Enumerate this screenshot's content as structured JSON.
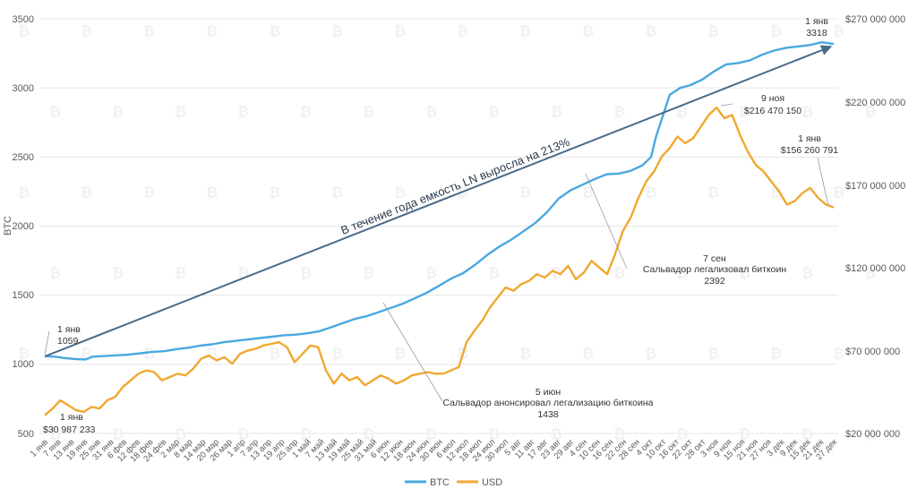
{
  "chart_data": {
    "type": "line",
    "title": "",
    "xlabel": "",
    "ylabel": "BTC",
    "y_left_ticks": [
      "500",
      "1000",
      "1500",
      "2000",
      "2500",
      "3000",
      "3500"
    ],
    "y_left_range": [
      500,
      3500
    ],
    "y_right_ticks": [
      "$20 000 000",
      "$70 000 000",
      "$120 000 000",
      "$170 000 000",
      "$220 000 000",
      "$270 000 000"
    ],
    "y_right_range": [
      20000000,
      270000000
    ],
    "x_ticks": [
      "1 янв",
      "7 янв",
      "13 янв",
      "19 янв",
      "25 янв",
      "31 янв",
      "6 фев",
      "12 фев",
      "18 фев",
      "24 фев",
      "2 мар",
      "8 мар",
      "14 мар",
      "20 мар",
      "26 мар",
      "1 апр",
      "7 апр",
      "13 апр",
      "19 апр",
      "25 апр",
      "1 май",
      "7 май",
      "13 май",
      "19 май",
      "25 май",
      "31 май",
      "6 июн",
      "12 июн",
      "18 июн",
      "24 июн",
      "30 июн",
      "6 июл",
      "12 июл",
      "18 июл",
      "24 июл",
      "30 июл",
      "5 авг",
      "11 авг",
      "17 авг",
      "23 авг",
      "29 авг",
      "4 сен",
      "10 сен",
      "16 сен",
      "22 сен",
      "28 сен",
      "4 окт",
      "10 окт",
      "16 окт",
      "22 окт",
      "28 окт",
      "3 ноя",
      "9 ноя",
      "15 ноя",
      "21 ноя",
      "27 ноя",
      "3 дек",
      "9 дек",
      "15 дек",
      "21 дек",
      "27 дек"
    ],
    "series": [
      {
        "name": "BTC",
        "axis": "left",
        "color": "#4aa8e0",
        "points": [
          [
            0,
            1059
          ],
          [
            6,
            1055
          ],
          [
            12,
            1045
          ],
          [
            18,
            1038
          ],
          [
            24,
            1035
          ],
          [
            28,
            1055
          ],
          [
            35,
            1060
          ],
          [
            42,
            1065
          ],
          [
            49,
            1070
          ],
          [
            56,
            1080
          ],
          [
            63,
            1090
          ],
          [
            70,
            1095
          ],
          [
            77,
            1110
          ],
          [
            84,
            1120
          ],
          [
            91,
            1135
          ],
          [
            98,
            1145
          ],
          [
            105,
            1160
          ],
          [
            112,
            1170
          ],
          [
            119,
            1180
          ],
          [
            126,
            1190
          ],
          [
            133,
            1200
          ],
          [
            140,
            1210
          ],
          [
            147,
            1215
          ],
          [
            154,
            1225
          ],
          [
            161,
            1240
          ],
          [
            168,
            1270
          ],
          [
            175,
            1300
          ],
          [
            182,
            1330
          ],
          [
            189,
            1350
          ],
          [
            196,
            1380
          ],
          [
            203,
            1410
          ],
          [
            210,
            1440
          ],
          [
            217,
            1480
          ],
          [
            224,
            1520
          ],
          [
            231,
            1570
          ],
          [
            238,
            1620
          ],
          [
            245,
            1660
          ],
          [
            252,
            1720
          ],
          [
            259,
            1790
          ],
          [
            266,
            1850
          ],
          [
            273,
            1900
          ],
          [
            280,
            1960
          ],
          [
            287,
            2020
          ],
          [
            294,
            2100
          ],
          [
            301,
            2200
          ],
          [
            308,
            2260
          ],
          [
            315,
            2300
          ],
          [
            322,
            2340
          ],
          [
            329,
            2375
          ],
          [
            336,
            2380
          ],
          [
            343,
            2400
          ],
          [
            350,
            2440
          ],
          [
            355,
            2500
          ],
          [
            358,
            2650
          ],
          [
            362,
            2800
          ],
          [
            366,
            2950
          ],
          [
            372,
            3000
          ],
          [
            378,
            3020
          ],
          [
            385,
            3060
          ],
          [
            392,
            3120
          ],
          [
            399,
            3170
          ],
          [
            406,
            3180
          ],
          [
            413,
            3200
          ],
          [
            420,
            3240
          ],
          [
            427,
            3270
          ],
          [
            434,
            3290
          ],
          [
            441,
            3300
          ],
          [
            448,
            3310
          ],
          [
            455,
            3330
          ],
          [
            462,
            3318
          ]
        ]
      },
      {
        "name": "USD",
        "axis": "right",
        "color": "#f0a830",
        "points": [
          [
            0,
            30987233
          ],
          [
            5,
            35000000
          ],
          [
            10,
            40000000
          ],
          [
            15,
            37000000
          ],
          [
            20,
            34000000
          ],
          [
            25,
            33000000
          ],
          [
            30,
            36000000
          ],
          [
            35,
            35000000
          ],
          [
            40,
            40000000
          ],
          [
            45,
            42000000
          ],
          [
            50,
            48000000
          ],
          [
            55,
            52000000
          ],
          [
            60,
            56000000
          ],
          [
            65,
            58000000
          ],
          [
            70,
            57000000
          ],
          [
            75,
            52000000
          ],
          [
            80,
            54000000
          ],
          [
            85,
            56000000
          ],
          [
            90,
            55000000
          ],
          [
            95,
            59000000
          ],
          [
            100,
            65000000
          ],
          [
            105,
            67000000
          ],
          [
            110,
            64000000
          ],
          [
            115,
            66000000
          ],
          [
            120,
            62000000
          ],
          [
            125,
            68000000
          ],
          [
            130,
            70000000
          ],
          [
            135,
            71000000
          ],
          [
            140,
            73000000
          ],
          [
            145,
            74000000
          ],
          [
            150,
            75000000
          ],
          [
            155,
            72000000
          ],
          [
            160,
            63000000
          ],
          [
            165,
            68000000
          ],
          [
            170,
            73000000
          ],
          [
            175,
            72000000
          ],
          [
            180,
            58000000
          ],
          [
            185,
            50000000
          ],
          [
            190,
            56000000
          ],
          [
            195,
            52000000
          ],
          [
            200,
            54000000
          ],
          [
            205,
            49000000
          ],
          [
            210,
            52000000
          ],
          [
            215,
            55000000
          ],
          [
            220,
            53000000
          ],
          [
            225,
            50000000
          ],
          [
            230,
            52000000
          ],
          [
            235,
            55000000
          ],
          [
            240,
            56000000
          ],
          [
            245,
            57000000
          ],
          [
            250,
            56000000
          ],
          [
            255,
            56000000
          ],
          [
            260,
            58000000
          ],
          [
            265,
            60000000
          ],
          [
            270,
            75000000
          ],
          [
            275,
            82000000
          ],
          [
            280,
            88000000
          ],
          [
            285,
            96000000
          ],
          [
            290,
            102000000
          ],
          [
            295,
            108000000
          ],
          [
            300,
            106000000
          ],
          [
            305,
            110000000
          ],
          [
            310,
            112000000
          ],
          [
            315,
            116000000
          ],
          [
            320,
            114000000
          ],
          [
            325,
            118000000
          ],
          [
            330,
            116000000
          ],
          [
            335,
            121000000
          ],
          [
            340,
            113000000
          ],
          [
            345,
            117000000
          ],
          [
            350,
            124000000
          ],
          [
            355,
            120000000
          ],
          [
            360,
            116000000
          ],
          [
            365,
            128000000
          ],
          [
            370,
            142000000
          ],
          [
            375,
            150000000
          ],
          [
            380,
            162000000
          ],
          [
            385,
            172000000
          ],
          [
            390,
            178000000
          ],
          [
            395,
            187000000
          ],
          [
            400,
            192000000
          ],
          [
            405,
            199000000
          ],
          [
            410,
            195000000
          ],
          [
            415,
            198000000
          ],
          [
            420,
            205000000
          ],
          [
            425,
            212000000
          ],
          [
            430,
            216470150
          ],
          [
            435,
            210000000
          ],
          [
            440,
            212000000
          ],
          [
            445,
            200000000
          ],
          [
            450,
            190000000
          ],
          [
            455,
            182000000
          ],
          [
            460,
            178000000
          ],
          [
            465,
            172000000
          ],
          [
            470,
            166000000
          ],
          [
            475,
            158000000
          ],
          [
            480,
            160000000
          ],
          [
            485,
            165000000
          ],
          [
            490,
            168000000
          ],
          [
            495,
            162000000
          ],
          [
            500,
            158000000
          ],
          [
            505,
            156260791
          ]
        ]
      }
    ],
    "legend": {
      "position": "bottom",
      "entries": [
        "BTC",
        "USD"
      ]
    },
    "annotations": {
      "trend_text": "В течение года емкость LN выросла на 213%",
      "btc_start_date": "1 янв",
      "btc_start_value": "1059",
      "usd_start_date": "1 янв",
      "usd_start_value": "$30 987 233",
      "june_date": "5 июн",
      "june_text": "Сальвадор анонсировал легализацию биткоина",
      "june_value": "1438",
      "sep_date": "7 сен",
      "sep_text": "Сальвадор легализовал биткоин",
      "sep_value": "2392",
      "nov_date": "9 ноя",
      "nov_value": "$216 470 150",
      "usd_end_date": "1 янв",
      "usd_end_value": "$156 260 791",
      "btc_end_date": "1 янв",
      "btc_end_value": "3318"
    }
  }
}
